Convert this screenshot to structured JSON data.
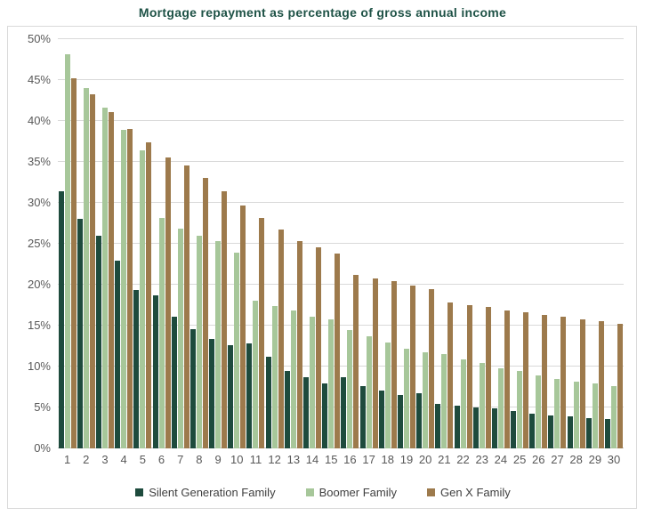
{
  "chart_data": {
    "type": "bar",
    "title": "Mortgage repayment as percentage of gross annual income",
    "xlabel": "",
    "ylabel": "",
    "ylim": [
      0,
      50
    ],
    "y_tick_step": 5,
    "y_ticks": [
      "0%",
      "5%",
      "10%",
      "15%",
      "20%",
      "25%",
      "30%",
      "35%",
      "40%",
      "45%",
      "50%"
    ],
    "grid": true,
    "legend_position": "bottom",
    "categories": [
      "1",
      "2",
      "3",
      "4",
      "5",
      "6",
      "7",
      "8",
      "9",
      "10",
      "11",
      "12",
      "13",
      "14",
      "15",
      "16",
      "17",
      "18",
      "19",
      "20",
      "21",
      "22",
      "23",
      "24",
      "25",
      "26",
      "27",
      "28",
      "29",
      "30"
    ],
    "series": [
      {
        "name": "Silent Generation Family",
        "color": "#1e4b3d",
        "values": [
          31.4,
          28.0,
          26.0,
          22.9,
          19.4,
          18.7,
          16.1,
          14.6,
          13.4,
          12.6,
          12.8,
          11.2,
          9.5,
          8.7,
          7.9,
          8.7,
          7.6,
          7.1,
          6.5,
          6.7,
          5.4,
          5.2,
          5.0,
          4.9,
          4.6,
          4.2,
          4.0,
          3.9,
          3.7,
          3.6
        ]
      },
      {
        "name": "Boomer Family",
        "color": "#a7c79a",
        "values": [
          48.2,
          44.0,
          41.6,
          38.9,
          36.4,
          28.2,
          26.9,
          26.0,
          25.3,
          23.9,
          18.0,
          17.4,
          16.8,
          16.1,
          15.8,
          14.5,
          13.7,
          12.9,
          12.2,
          11.7,
          11.5,
          10.9,
          10.4,
          9.8,
          9.5,
          8.9,
          8.5,
          8.1,
          7.9,
          7.6
        ]
      },
      {
        "name": "Gen X Family",
        "color": "#9d7a4c",
        "values": [
          45.2,
          43.3,
          41.1,
          39.0,
          37.4,
          35.5,
          34.6,
          33.0,
          31.4,
          29.7,
          28.1,
          26.7,
          25.3,
          24.6,
          23.8,
          21.2,
          20.8,
          20.4,
          19.9,
          19.5,
          17.8,
          17.5,
          17.3,
          16.9,
          16.6,
          16.3,
          16.1,
          15.8,
          15.5,
          15.2
        ]
      }
    ],
    "colors": {
      "title": "#1e5246",
      "axis_text": "#595959",
      "grid": "#d9d9d9",
      "panel_border": "#d9d9d9",
      "legend_text": "#404040"
    }
  }
}
